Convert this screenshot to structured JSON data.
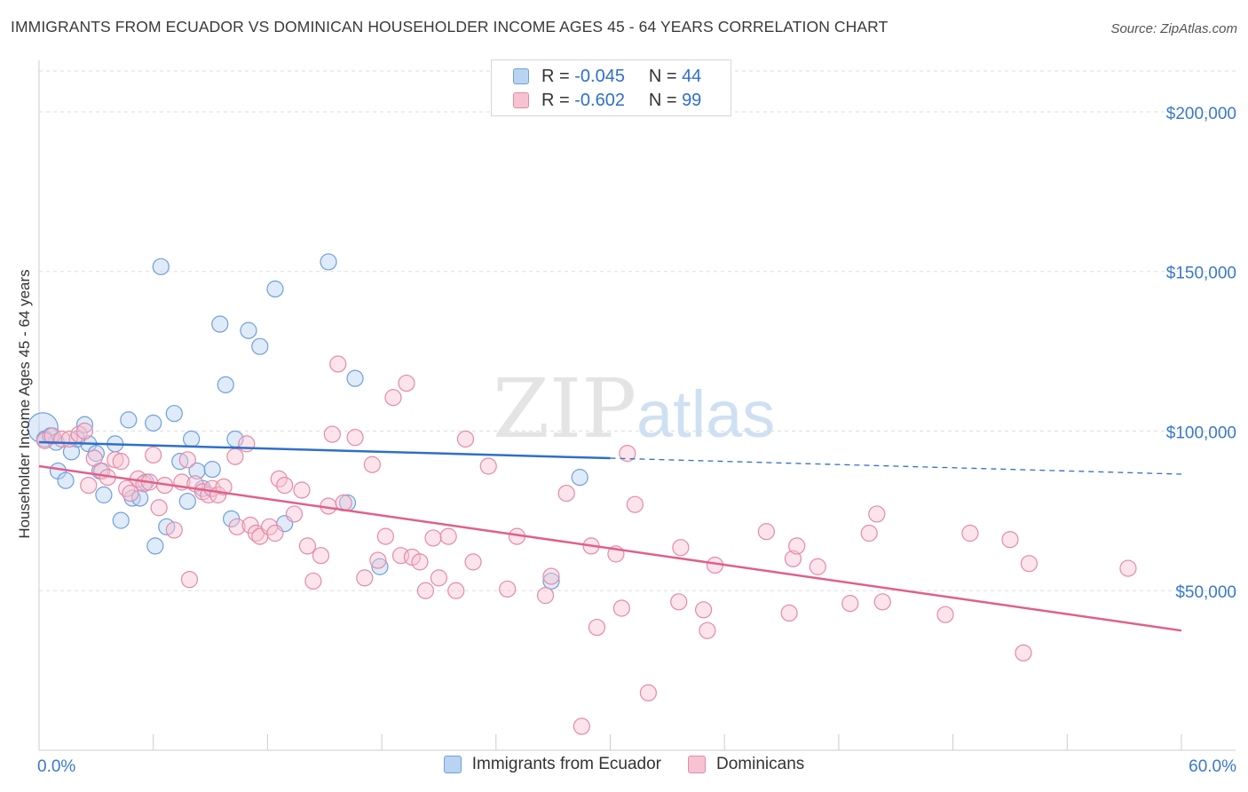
{
  "title": "IMMIGRANTS FROM ECUADOR VS DOMINICAN HOUSEHOLDER INCOME AGES 45 - 64 YEARS CORRELATION CHART",
  "source": "Source: ZipAtlas.com",
  "watermark": {
    "zip": "ZIP",
    "atlas": "atlas"
  },
  "legend": {
    "r_label": "R =",
    "n_label": "N =",
    "rows": [
      {
        "r": "-0.045",
        "n": "44",
        "fill": "#b9d3f2",
        "stroke": "#6f9fdb"
      },
      {
        "r": "-0.602",
        "n": "99",
        "fill": "#f7c3d2",
        "stroke": "#e58aa6"
      }
    ]
  },
  "bottom_legend": [
    {
      "label": "Immigrants from Ecuador",
      "fill": "#b9d3f2",
      "stroke": "#6f9fdb"
    },
    {
      "label": "Dominicans",
      "fill": "#f7c3d2",
      "stroke": "#e58aa6"
    }
  ],
  "colors": {
    "blue_line": "#2f6fca",
    "pink_line": "#e0608a",
    "axis_text": "#3a78c9",
    "grid": "#dddddd"
  },
  "chart_data": {
    "type": "scatter",
    "title": "IMMIGRANTS FROM ECUADOR VS DOMINICAN HOUSEHOLDER INCOME AGES 45 - 64 YEARS CORRELATION CHART",
    "xlabel": "",
    "ylabel": "Householder Income Ages 45 - 64 years",
    "xlim": [
      0,
      60
    ],
    "ylim": [
      0,
      210000
    ],
    "x_tick_labels": [
      "0.0%",
      "60.0%"
    ],
    "y_ticks": [
      50000,
      100000,
      150000,
      200000
    ],
    "y_tick_labels": [
      "$50,000",
      "$100,000",
      "$150,000",
      "$200,000"
    ],
    "grid": true,
    "legend_position": "top-center",
    "series": [
      {
        "name": "Immigrants from Ecuador",
        "color": "#6f9fdb",
        "R": -0.045,
        "N": 44,
        "trend": {
          "x": [
            0,
            30
          ],
          "y": [
            96500,
            91500
          ],
          "dashed_extension": {
            "x": [
              30,
              60
            ],
            "y": [
              91500,
              86500
            ]
          }
        },
        "points": [
          [
            0.2,
            101000
          ],
          [
            0.3,
            97500
          ],
          [
            0.6,
            98500
          ],
          [
            0.9,
            96500
          ],
          [
            1.0,
            87500
          ],
          [
            1.4,
            84500
          ],
          [
            1.7,
            93500
          ],
          [
            2.0,
            97500
          ],
          [
            2.4,
            102000
          ],
          [
            2.6,
            96000
          ],
          [
            3.0,
            93000
          ],
          [
            3.2,
            87500
          ],
          [
            3.4,
            80000
          ],
          [
            4.0,
            96000
          ],
          [
            4.3,
            72000
          ],
          [
            4.7,
            103500
          ],
          [
            4.9,
            79000
          ],
          [
            5.3,
            79000
          ],
          [
            5.6,
            84000
          ],
          [
            6.0,
            102500
          ],
          [
            6.1,
            64000
          ],
          [
            6.4,
            151500
          ],
          [
            6.7,
            70000
          ],
          [
            7.1,
            105500
          ],
          [
            7.4,
            90500
          ],
          [
            7.8,
            78000
          ],
          [
            8.0,
            97500
          ],
          [
            8.3,
            87500
          ],
          [
            8.6,
            82000
          ],
          [
            9.1,
            88000
          ],
          [
            9.5,
            133500
          ],
          [
            9.8,
            114500
          ],
          [
            10.1,
            72500
          ],
          [
            10.3,
            97500
          ],
          [
            11.0,
            131500
          ],
          [
            11.6,
            126500
          ],
          [
            12.4,
            144500
          ],
          [
            12.9,
            71000
          ],
          [
            15.2,
            153000
          ],
          [
            16.2,
            77500
          ],
          [
            16.6,
            116500
          ],
          [
            17.9,
            57500
          ],
          [
            26.9,
            53000
          ],
          [
            28.4,
            85500
          ]
        ]
      },
      {
        "name": "Dominicans",
        "color": "#e58aa6",
        "R": -0.602,
        "N": 99,
        "trend": {
          "x": [
            0,
            60
          ],
          "y": [
            89000,
            37500
          ]
        },
        "points": [
          [
            0.3,
            97000
          ],
          [
            0.7,
            98500
          ],
          [
            1.2,
            97500
          ],
          [
            1.6,
            97500
          ],
          [
            2.1,
            99000
          ],
          [
            2.4,
            100000
          ],
          [
            2.6,
            83000
          ],
          [
            2.9,
            91500
          ],
          [
            3.3,
            87500
          ],
          [
            3.6,
            85500
          ],
          [
            4.0,
            91000
          ],
          [
            4.3,
            90500
          ],
          [
            4.6,
            82000
          ],
          [
            4.8,
            80500
          ],
          [
            5.2,
            85000
          ],
          [
            5.5,
            83500
          ],
          [
            5.8,
            84000
          ],
          [
            6.0,
            92500
          ],
          [
            6.3,
            76000
          ],
          [
            6.6,
            83000
          ],
          [
            7.1,
            69000
          ],
          [
            7.5,
            84000
          ],
          [
            7.8,
            91000
          ],
          [
            7.9,
            53500
          ],
          [
            8.2,
            83500
          ],
          [
            8.6,
            81000
          ],
          [
            8.9,
            80000
          ],
          [
            9.1,
            82000
          ],
          [
            9.4,
            80000
          ],
          [
            9.7,
            82500
          ],
          [
            10.3,
            92000
          ],
          [
            10.4,
            70000
          ],
          [
            10.9,
            96000
          ],
          [
            11.1,
            70500
          ],
          [
            11.4,
            68000
          ],
          [
            11.6,
            67000
          ],
          [
            12.1,
            70000
          ],
          [
            12.4,
            68000
          ],
          [
            12.6,
            85000
          ],
          [
            12.9,
            83000
          ],
          [
            13.4,
            74000
          ],
          [
            13.8,
            81500
          ],
          [
            14.1,
            64000
          ],
          [
            14.4,
            53000
          ],
          [
            14.8,
            61000
          ],
          [
            15.2,
            76500
          ],
          [
            15.4,
            99000
          ],
          [
            15.7,
            121000
          ],
          [
            16.0,
            77500
          ],
          [
            16.6,
            98000
          ],
          [
            17.1,
            54000
          ],
          [
            17.5,
            89500
          ],
          [
            17.8,
            59500
          ],
          [
            18.2,
            67000
          ],
          [
            18.6,
            110500
          ],
          [
            19.0,
            61000
          ],
          [
            19.3,
            115000
          ],
          [
            19.6,
            60500
          ],
          [
            20.0,
            59000
          ],
          [
            20.3,
            50000
          ],
          [
            20.7,
            66500
          ],
          [
            21.0,
            54000
          ],
          [
            21.5,
            67000
          ],
          [
            21.9,
            50000
          ],
          [
            22.4,
            97500
          ],
          [
            22.8,
            59000
          ],
          [
            23.6,
            89000
          ],
          [
            24.6,
            50500
          ],
          [
            25.1,
            67000
          ],
          [
            26.6,
            48500
          ],
          [
            26.9,
            54500
          ],
          [
            27.7,
            80500
          ],
          [
            29.0,
            64000
          ],
          [
            29.3,
            38500
          ],
          [
            30.3,
            61500
          ],
          [
            30.6,
            44500
          ],
          [
            30.9,
            93000
          ],
          [
            31.3,
            77000
          ],
          [
            32.0,
            18000
          ],
          [
            33.6,
            46500
          ],
          [
            33.7,
            63500
          ],
          [
            34.9,
            44000
          ],
          [
            35.1,
            37500
          ],
          [
            35.5,
            58000
          ],
          [
            38.2,
            68500
          ],
          [
            39.4,
            43000
          ],
          [
            39.6,
            60000
          ],
          [
            39.8,
            64000
          ],
          [
            40.9,
            57500
          ],
          [
            42.6,
            46000
          ],
          [
            43.6,
            68000
          ],
          [
            44.0,
            74000
          ],
          [
            44.3,
            46500
          ],
          [
            47.6,
            42500
          ],
          [
            48.9,
            68000
          ],
          [
            51.0,
            66000
          ],
          [
            51.7,
            30500
          ],
          [
            52.0,
            58500
          ],
          [
            57.2,
            57000
          ],
          [
            28.5,
            7500
          ]
        ]
      }
    ]
  }
}
